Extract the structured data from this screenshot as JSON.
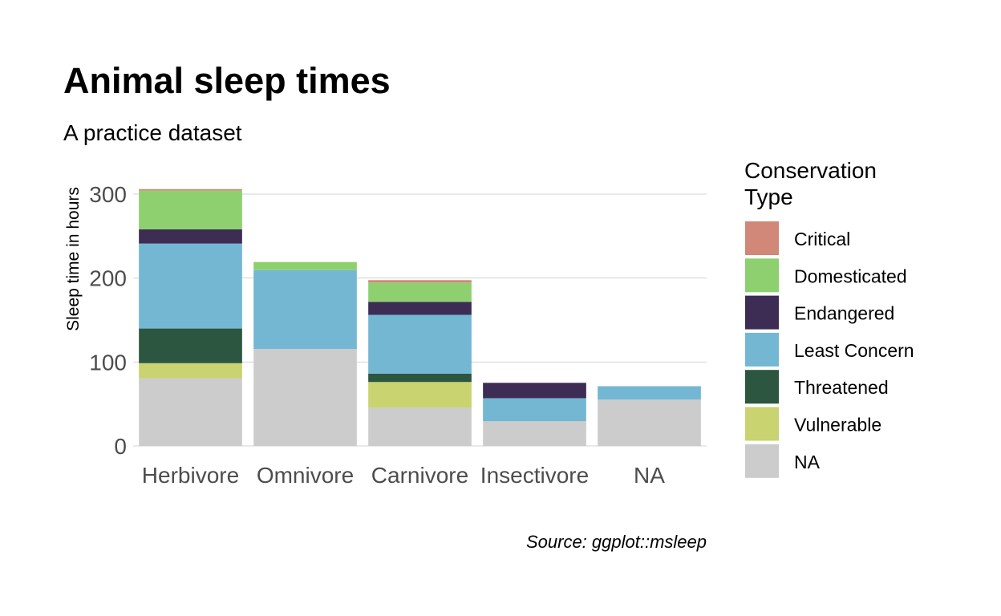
{
  "chart_data": {
    "type": "bar",
    "stacked": true,
    "title": "Animal sleep times",
    "subtitle": "A practice dataset",
    "ylabel": "Sleep time in hours",
    "xlabel": "",
    "caption": "Source: ggplot::msleep",
    "ylim": [
      0,
      300
    ],
    "yticks": [
      0,
      100,
      200,
      300
    ],
    "grid": true,
    "categories": [
      "Herbivore",
      "Omnivore",
      "Carnivore",
      "Insectivore",
      "NA"
    ],
    "legend": {
      "title_lines": [
        "Conservation",
        "Type"
      ],
      "placement": "right"
    },
    "series": [
      {
        "name": "NA",
        "color": "#cccccc",
        "values": [
          80.7,
          115.5,
          45.7,
          29.4,
          55.2
        ]
      },
      {
        "name": "Vulnerable",
        "color": "#c9d36f",
        "values": [
          17.9,
          0,
          30.5,
          0,
          0
        ]
      },
      {
        "name": "Threatened",
        "color": "#2c5640",
        "values": [
          41.3,
          0,
          10.0,
          0,
          0
        ]
      },
      {
        "name": "Least Concern",
        "color": "#74b7d2",
        "values": [
          101.2,
          94.0,
          70.0,
          27.5,
          16.0
        ]
      },
      {
        "name": "Endangered",
        "color": "#3d2d54",
        "values": [
          17.0,
          0,
          15.5,
          18.3,
          0
        ]
      },
      {
        "name": "Domesticated",
        "color": "#8ed070",
        "values": [
          46.1,
          9.6,
          23.0,
          0,
          0
        ]
      },
      {
        "name": "Critical",
        "color": "#d18878",
        "values": [
          1.8,
          0,
          2.8,
          0,
          0
        ]
      }
    ],
    "legend_order": [
      "Critical",
      "Domesticated",
      "Endangered",
      "Least Concern",
      "Threatened",
      "Vulnerable",
      "NA"
    ]
  }
}
